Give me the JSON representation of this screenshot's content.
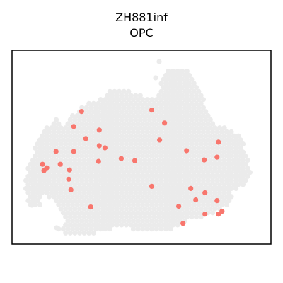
{
  "chart_data": {
    "type": "scatter",
    "title": "ZH881inf",
    "subtitle": "OPC",
    "xlabel": "",
    "ylabel": "",
    "xlim": [
      0,
      365
    ],
    "ylim": [
      0,
      272
    ],
    "grid": false,
    "legend": "none",
    "colors": {
      "background_spots": "#ebebeb",
      "highlight_spots": "#f8766d",
      "frame": "#000000"
    },
    "series": [
      {
        "name": "",
        "values": [
          [
            98,
            186
          ],
          [
            197,
            188
          ],
          [
            215,
            170
          ],
          [
            87,
            165
          ],
          [
            123,
            160
          ],
          [
            208,
            146
          ],
          [
            104,
            148
          ],
          [
            123,
            138
          ],
          [
            131,
            135
          ],
          [
            246,
            131
          ],
          [
            291,
            143
          ],
          [
            289,
            122
          ],
          [
            62,
            130
          ],
          [
            87,
            130
          ],
          [
            154,
            120
          ],
          [
            173,
            117
          ],
          [
            122,
            116
          ],
          [
            271,
            118
          ],
          [
            43,
            112
          ],
          [
            49,
            107
          ],
          [
            45,
            103
          ],
          [
            68,
            112
          ],
          [
            81,
            104
          ],
          [
            80,
            91
          ],
          [
            197,
            81
          ],
          [
            252,
            78
          ],
          [
            272,
            72
          ],
          [
            83,
            76
          ],
          [
            111,
            52
          ],
          [
            235,
            53
          ],
          [
            259,
            62
          ],
          [
            289,
            61
          ],
          [
            296,
            46
          ],
          [
            291,
            42
          ],
          [
            272,
            42
          ],
          [
            241,
            29
          ]
        ]
      }
    ]
  }
}
